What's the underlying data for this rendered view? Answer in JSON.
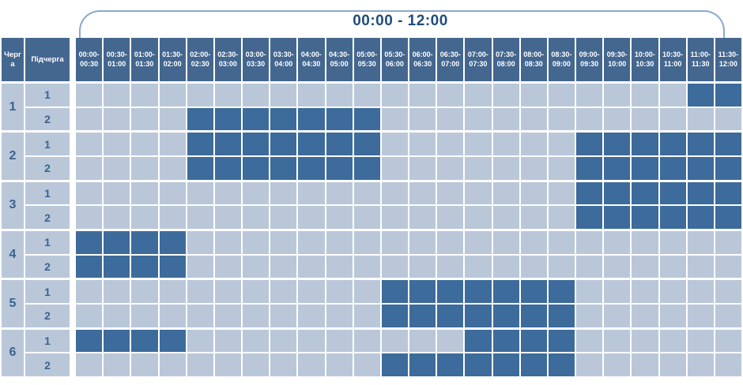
{
  "columns": {
    "queue": "Черга",
    "subqueue": "Підчерга"
  },
  "colors": {
    "header_cell": "#44678f",
    "filled_cell": "#3d6b9b",
    "empty_cell": "#b9c7d8",
    "grid_line": "#ffffff",
    "title_text": "#1f4e79",
    "bracket_line": "#8ba8d0",
    "label_text": "#3a6390"
  },
  "chart_data": {
    "type": "heatmap",
    "title": "00:00 - 12:00",
    "x_categories": [
      "00:00-00:30",
      "00:30-01:00",
      "01:00-01:30",
      "01:30-02:00",
      "02:00-02:30",
      "02:30-03:00",
      "03:00-03:30",
      "03:30-04:00",
      "04:00-04:30",
      "04:30-05:00",
      "05:00-05:30",
      "05:30-06:00",
      "06:00-06:30",
      "06:30-07:00",
      "07:00-07:30",
      "07:30-08:00",
      "08:00-08:30",
      "08:30-09:00",
      "09:00-09:30",
      "09:30-10:00",
      "10:00-10:30",
      "10:30-11:00",
      "11:00-11:30",
      "11:30-12:00"
    ],
    "value_meaning": "1 = dark filled cell, 0 = light empty cell",
    "groups": [
      {
        "queue": "1",
        "rows": [
          {
            "subqueue": "1",
            "values": [
              0,
              0,
              0,
              0,
              0,
              0,
              0,
              0,
              0,
              0,
              0,
              0,
              0,
              0,
              0,
              0,
              0,
              0,
              0,
              0,
              0,
              0,
              1,
              1
            ]
          },
          {
            "subqueue": "2",
            "values": [
              0,
              0,
              0,
              0,
              1,
              1,
              1,
              1,
              1,
              1,
              1,
              0,
              0,
              0,
              0,
              0,
              0,
              0,
              0,
              0,
              0,
              0,
              0,
              0
            ]
          }
        ]
      },
      {
        "queue": "2",
        "rows": [
          {
            "subqueue": "1",
            "values": [
              0,
              0,
              0,
              0,
              1,
              1,
              1,
              1,
              1,
              1,
              1,
              0,
              0,
              0,
              0,
              0,
              0,
              0,
              1,
              1,
              1,
              1,
              1,
              1
            ]
          },
          {
            "subqueue": "2",
            "values": [
              0,
              0,
              0,
              0,
              1,
              1,
              1,
              1,
              1,
              1,
              1,
              0,
              0,
              0,
              0,
              0,
              0,
              0,
              1,
              1,
              1,
              1,
              1,
              1
            ]
          }
        ]
      },
      {
        "queue": "3",
        "rows": [
          {
            "subqueue": "1",
            "values": [
              0,
              0,
              0,
              0,
              0,
              0,
              0,
              0,
              0,
              0,
              0,
              0,
              0,
              0,
              0,
              0,
              0,
              0,
              1,
              1,
              1,
              1,
              1,
              1
            ]
          },
          {
            "subqueue": "2",
            "values": [
              0,
              0,
              0,
              0,
              0,
              0,
              0,
              0,
              0,
              0,
              0,
              0,
              0,
              0,
              0,
              0,
              0,
              0,
              1,
              1,
              1,
              1,
              1,
              1
            ]
          }
        ]
      },
      {
        "queue": "4",
        "rows": [
          {
            "subqueue": "1",
            "values": [
              1,
              1,
              1,
              1,
              0,
              0,
              0,
              0,
              0,
              0,
              0,
              0,
              0,
              0,
              0,
              0,
              0,
              0,
              0,
              0,
              0,
              0,
              0,
              0
            ]
          },
          {
            "subqueue": "2",
            "values": [
              1,
              1,
              1,
              1,
              0,
              0,
              0,
              0,
              0,
              0,
              0,
              0,
              0,
              0,
              0,
              0,
              0,
              0,
              0,
              0,
              0,
              0,
              0,
              0
            ]
          }
        ]
      },
      {
        "queue": "5",
        "rows": [
          {
            "subqueue": "1",
            "values": [
              0,
              0,
              0,
              0,
              0,
              0,
              0,
              0,
              0,
              0,
              0,
              1,
              1,
              1,
              1,
              1,
              1,
              1,
              0,
              0,
              0,
              0,
              0,
              0
            ]
          },
          {
            "subqueue": "2",
            "values": [
              0,
              0,
              0,
              0,
              0,
              0,
              0,
              0,
              0,
              0,
              0,
              1,
              1,
              1,
              1,
              1,
              1,
              1,
              0,
              0,
              0,
              0,
              0,
              0
            ]
          }
        ]
      },
      {
        "queue": "6",
        "rows": [
          {
            "subqueue": "1",
            "values": [
              1,
              1,
              1,
              1,
              0,
              0,
              0,
              0,
              0,
              0,
              0,
              0,
              0,
              0,
              1,
              1,
              1,
              1,
              0,
              0,
              0,
              0,
              0,
              0
            ]
          },
          {
            "subqueue": "2",
            "values": [
              0,
              0,
              0,
              0,
              0,
              0,
              0,
              0,
              0,
              0,
              0,
              1,
              1,
              1,
              1,
              1,
              1,
              1,
              0,
              0,
              0,
              0,
              0,
              0
            ]
          }
        ]
      }
    ]
  }
}
